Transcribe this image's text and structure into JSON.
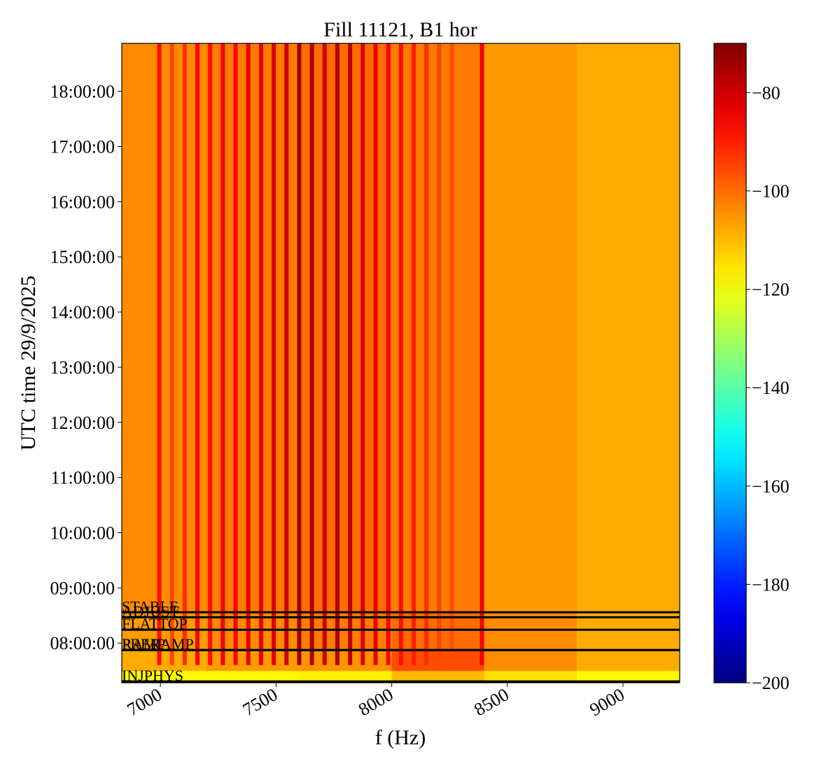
{
  "chart_data": {
    "type": "spectrogram",
    "title": "Fill 11121, B1 hor",
    "xlabel": "f (Hz)",
    "ylabel": "UTC time 29/9/2025",
    "cmap": "jet",
    "xlim": [
      6833,
      9245
    ],
    "xticks": [
      7000,
      7500,
      8000,
      8500,
      9000
    ],
    "ylim": [
      7.28,
      18.87
    ],
    "yticks": [
      {
        "value": 8,
        "label": "08:00:00"
      },
      {
        "value": 9,
        "label": "09:00:00"
      },
      {
        "value": 10,
        "label": "10:00:00"
      },
      {
        "value": 11,
        "label": "11:00:00"
      },
      {
        "value": 12,
        "label": "12:00:00"
      },
      {
        "value": 13,
        "label": "13:00:00"
      },
      {
        "value": 14,
        "label": "14:00:00"
      },
      {
        "value": 15,
        "label": "15:00:00"
      },
      {
        "value": 16,
        "label": "16:00:00"
      },
      {
        "value": 17,
        "label": "17:00:00"
      },
      {
        "value": 18,
        "label": "18:00:00"
      }
    ],
    "clim": [
      -200,
      -70
    ],
    "cticks": [
      {
        "value": -80,
        "label": "−80"
      },
      {
        "value": -100,
        "label": "−100"
      },
      {
        "value": -120,
        "label": "−120"
      },
      {
        "value": -140,
        "label": "−140"
      },
      {
        "value": -160,
        "label": "−160"
      },
      {
        "value": -180,
        "label": "−180"
      },
      {
        "value": -200,
        "label": "−200"
      }
    ],
    "f_edges": [
      6833,
      7200,
      7600,
      8000,
      8400,
      8800,
      9245
    ],
    "t_edges": [
      7.28,
      7.5,
      7.87,
      8.56,
      18.87
    ],
    "z": [
      [
        -118,
        -118,
        -117,
        -110,
        -115,
        -118
      ],
      [
        -108,
        -106,
        -105,
        -96,
        -104,
        -108
      ],
      [
        -106,
        -104,
        -102,
        -100,
        -104,
        -108
      ],
      [
        -104,
        -102,
        -100,
        -102,
        -106,
        -108
      ]
    ],
    "stripes": {
      "from": 7.6,
      "f": [
        6995,
        7050,
        7105,
        7160,
        7215,
        7270,
        7325,
        7380,
        7435,
        7490,
        7545,
        7600,
        7655,
        7710,
        7765,
        7820,
        7875,
        7930,
        7985,
        8040,
        8095,
        8150,
        8205,
        8260,
        8390
      ],
      "power": [
        -88,
        -95,
        -92,
        -86,
        -88,
        -85,
        -86,
        -84,
        -84,
        -82,
        -80,
        -74,
        -76,
        -80,
        -76,
        -78,
        -82,
        -84,
        -86,
        -88,
        -90,
        -92,
        -95,
        -96,
        -85
      ]
    },
    "modes": [
      {
        "name": "STABLE",
        "t": 8.557
      },
      {
        "name": "ADJUST",
        "t": 8.468
      },
      {
        "name": "FLATTOP",
        "t": 8.241
      },
      {
        "name": "PRERAMP",
        "t": 7.873
      },
      {
        "name": "RAMP",
        "t": 7.873
      },
      {
        "name": "INJPHYS",
        "t": 7.304
      }
    ]
  }
}
